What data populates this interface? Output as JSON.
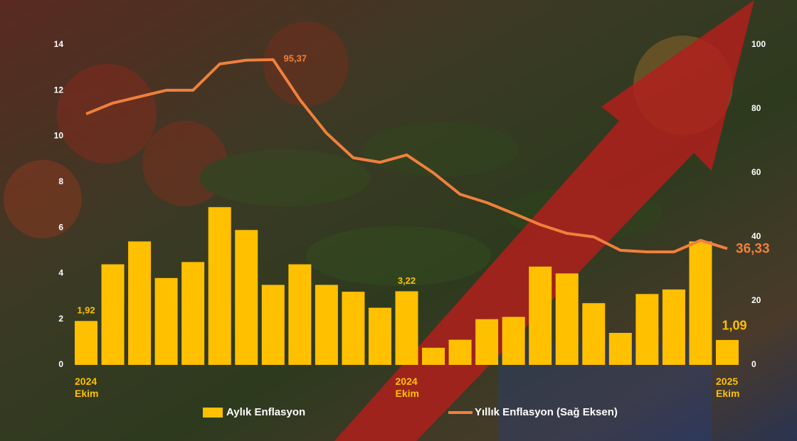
{
  "chart_data": {
    "type": "combo",
    "categories": [
      "2024 Ekim",
      null,
      null,
      null,
      null,
      null,
      null,
      null,
      null,
      null,
      null,
      null,
      "2024 Ekim",
      null,
      null,
      null,
      null,
      null,
      null,
      null,
      null,
      null,
      null,
      null,
      "2025 Ekim"
    ],
    "series": [
      {
        "name": "Aylık Enflasyon",
        "type": "bar",
        "color": "#ffc000",
        "values": [
          1.92,
          4.4,
          5.4,
          3.8,
          4.5,
          6.9,
          5.9,
          3.5,
          4.4,
          3.5,
          3.2,
          2.5,
          3.22,
          0.75,
          1.1,
          2.0,
          2.1,
          4.3,
          4.0,
          2.7,
          1.4,
          3.1,
          3.3,
          5.4,
          1.09
        ],
        "value_labels": [
          "1,92",
          null,
          null,
          null,
          null,
          null,
          null,
          null,
          null,
          null,
          null,
          null,
          "3,22",
          null,
          null,
          null,
          null,
          null,
          null,
          null,
          null,
          null,
          null,
          null,
          "1,09"
        ]
      },
      {
        "name": "Yıllık Enflasyon (Sağ Eksen)",
        "type": "line",
        "axis": "y2",
        "color": "#f0803c",
        "values": [
          78.4,
          81.8,
          83.8,
          85.8,
          85.8,
          94.0,
          95.2,
          95.37,
          82.9,
          72.4,
          64.7,
          63.3,
          65.6,
          60.0,
          53.3,
          50.7,
          47.3,
          43.8,
          41.1,
          40.0,
          35.8,
          35.3,
          35.3,
          38.9,
          36.33
        ],
        "value_labels": [
          null,
          null,
          null,
          null,
          null,
          null,
          null,
          "95,37",
          null,
          null,
          null,
          null,
          null,
          null,
          null,
          null,
          null,
          null,
          null,
          null,
          null,
          null,
          null,
          null,
          "36,33"
        ]
      }
    ],
    "ylim": [
      0,
      14
    ],
    "yticks": [
      0,
      2,
      4,
      6,
      8,
      10,
      12,
      14
    ],
    "y2lim": [
      0,
      100
    ],
    "y2ticks": [
      0,
      20,
      40,
      60,
      80,
      100
    ],
    "grid": false,
    "legend": "bottom"
  }
}
